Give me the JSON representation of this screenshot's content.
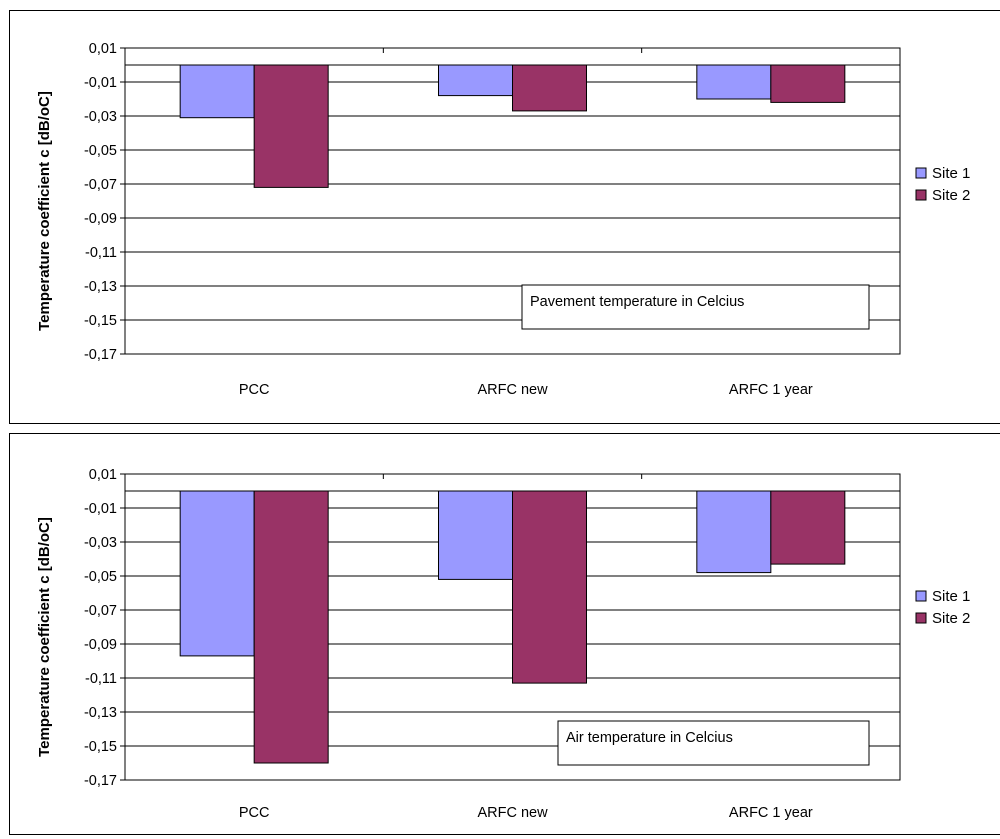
{
  "chart_data": [
    {
      "type": "bar",
      "categories": [
        "PCC",
        "ARFC new",
        "ARFC 1 year"
      ],
      "series": [
        {
          "name": "Site 1",
          "values": [
            -0.031,
            -0.018,
            -0.02
          ]
        },
        {
          "name": "Site 2",
          "values": [
            -0.072,
            -0.027,
            -0.022
          ]
        }
      ],
      "ylabel": "Temperature coefficient c [dB/oC]",
      "xlabel": "",
      "ylim": [
        -0.17,
        0.01
      ],
      "yticks": [
        "0,01",
        "-0,01",
        "-0,03",
        "-0,05",
        "-0,07",
        "-0,09",
        "-0,11",
        "-0,13",
        "-0,15",
        "-0,17"
      ],
      "annotation": "Pavement temperature in Celcius",
      "colors": [
        "#9999ff",
        "#993366"
      ],
      "grid": true,
      "legend": "right"
    },
    {
      "type": "bar",
      "categories": [
        "PCC",
        "ARFC new",
        "ARFC 1 year"
      ],
      "series": [
        {
          "name": "Site 1",
          "values": [
            -0.097,
            -0.052,
            -0.048
          ]
        },
        {
          "name": "Site 2",
          "values": [
            -0.16,
            -0.113,
            -0.043
          ]
        }
      ],
      "ylabel": "Temperature coefficient c [dB/oC]",
      "xlabel": "",
      "ylim": [
        -0.17,
        0.01
      ],
      "yticks": [
        "0,01",
        "-0,01",
        "-0,03",
        "-0,05",
        "-0,07",
        "-0,09",
        "-0,11",
        "-0,13",
        "-0,15",
        "-0,17"
      ],
      "annotation": "Air temperature in Celcius",
      "colors": [
        "#9999ff",
        "#993366"
      ],
      "grid": true,
      "legend": "right"
    }
  ]
}
